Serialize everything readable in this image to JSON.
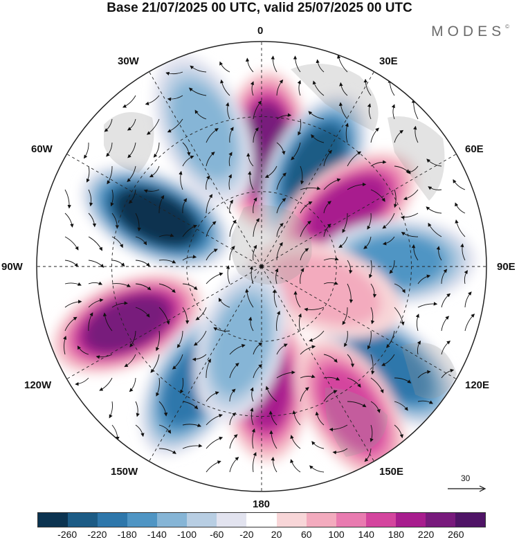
{
  "title": "Base 21/07/2025 00 UTC, valid 25/07/2025 00 UTC",
  "brand": "MODES",
  "brand_mark": "©",
  "map_labels": {
    "top": "0",
    "bottom": "180",
    "left": "90W",
    "right": "90E",
    "upper_left_30": "30W",
    "upper_right_30": "30E",
    "upper_left_60": "60W",
    "upper_right_60": "60E",
    "lower_left_120": "120W",
    "lower_right_120": "120E",
    "lower_left_150": "150W",
    "lower_right_150": "150E"
  },
  "reference_vector": "30",
  "colorbar": {
    "ticks": [
      "-260",
      "-220",
      "-180",
      "-140",
      "-100",
      "-60",
      "-20",
      "20",
      "60",
      "100",
      "140",
      "180",
      "220",
      "260"
    ],
    "colors": [
      "#0b3350",
      "#1c5b85",
      "#2e77ab",
      "#4f95c4",
      "#86b5d6",
      "#b8cee3",
      "#e2e3ef",
      "#ffffff",
      "#f8d6d8",
      "#f3abbe",
      "#e97bb0",
      "#d4459e",
      "#a81d8e",
      "#781a7c",
      "#4f1466"
    ]
  },
  "anomaly_centers": [
    {
      "lon": 2,
      "r": 0.52,
      "val": 200
    },
    {
      "lon": 28,
      "r": 0.5,
      "val": -220
    },
    {
      "lon": 56,
      "r": 0.46,
      "val": 180
    },
    {
      "lon": 88,
      "r": 0.6,
      "val": -140
    },
    {
      "lon": -23,
      "r": 0.66,
      "val": -110
    },
    {
      "lon": -65,
      "r": 0.52,
      "val": -250
    },
    {
      "lon": -113,
      "r": 0.65,
      "val": 210
    },
    {
      "lon": -150,
      "r": 0.6,
      "val": -180
    },
    {
      "lon": 178,
      "r": 0.52,
      "val": 180
    },
    {
      "lon": 128,
      "r": 0.73,
      "val": -160
    },
    {
      "lon": 148,
      "r": 0.75,
      "val": 120
    },
    {
      "lon": 110,
      "r": 0.3,
      "val": 60
    },
    {
      "lon": -165,
      "r": 0.36,
      "val": -80
    }
  ]
}
